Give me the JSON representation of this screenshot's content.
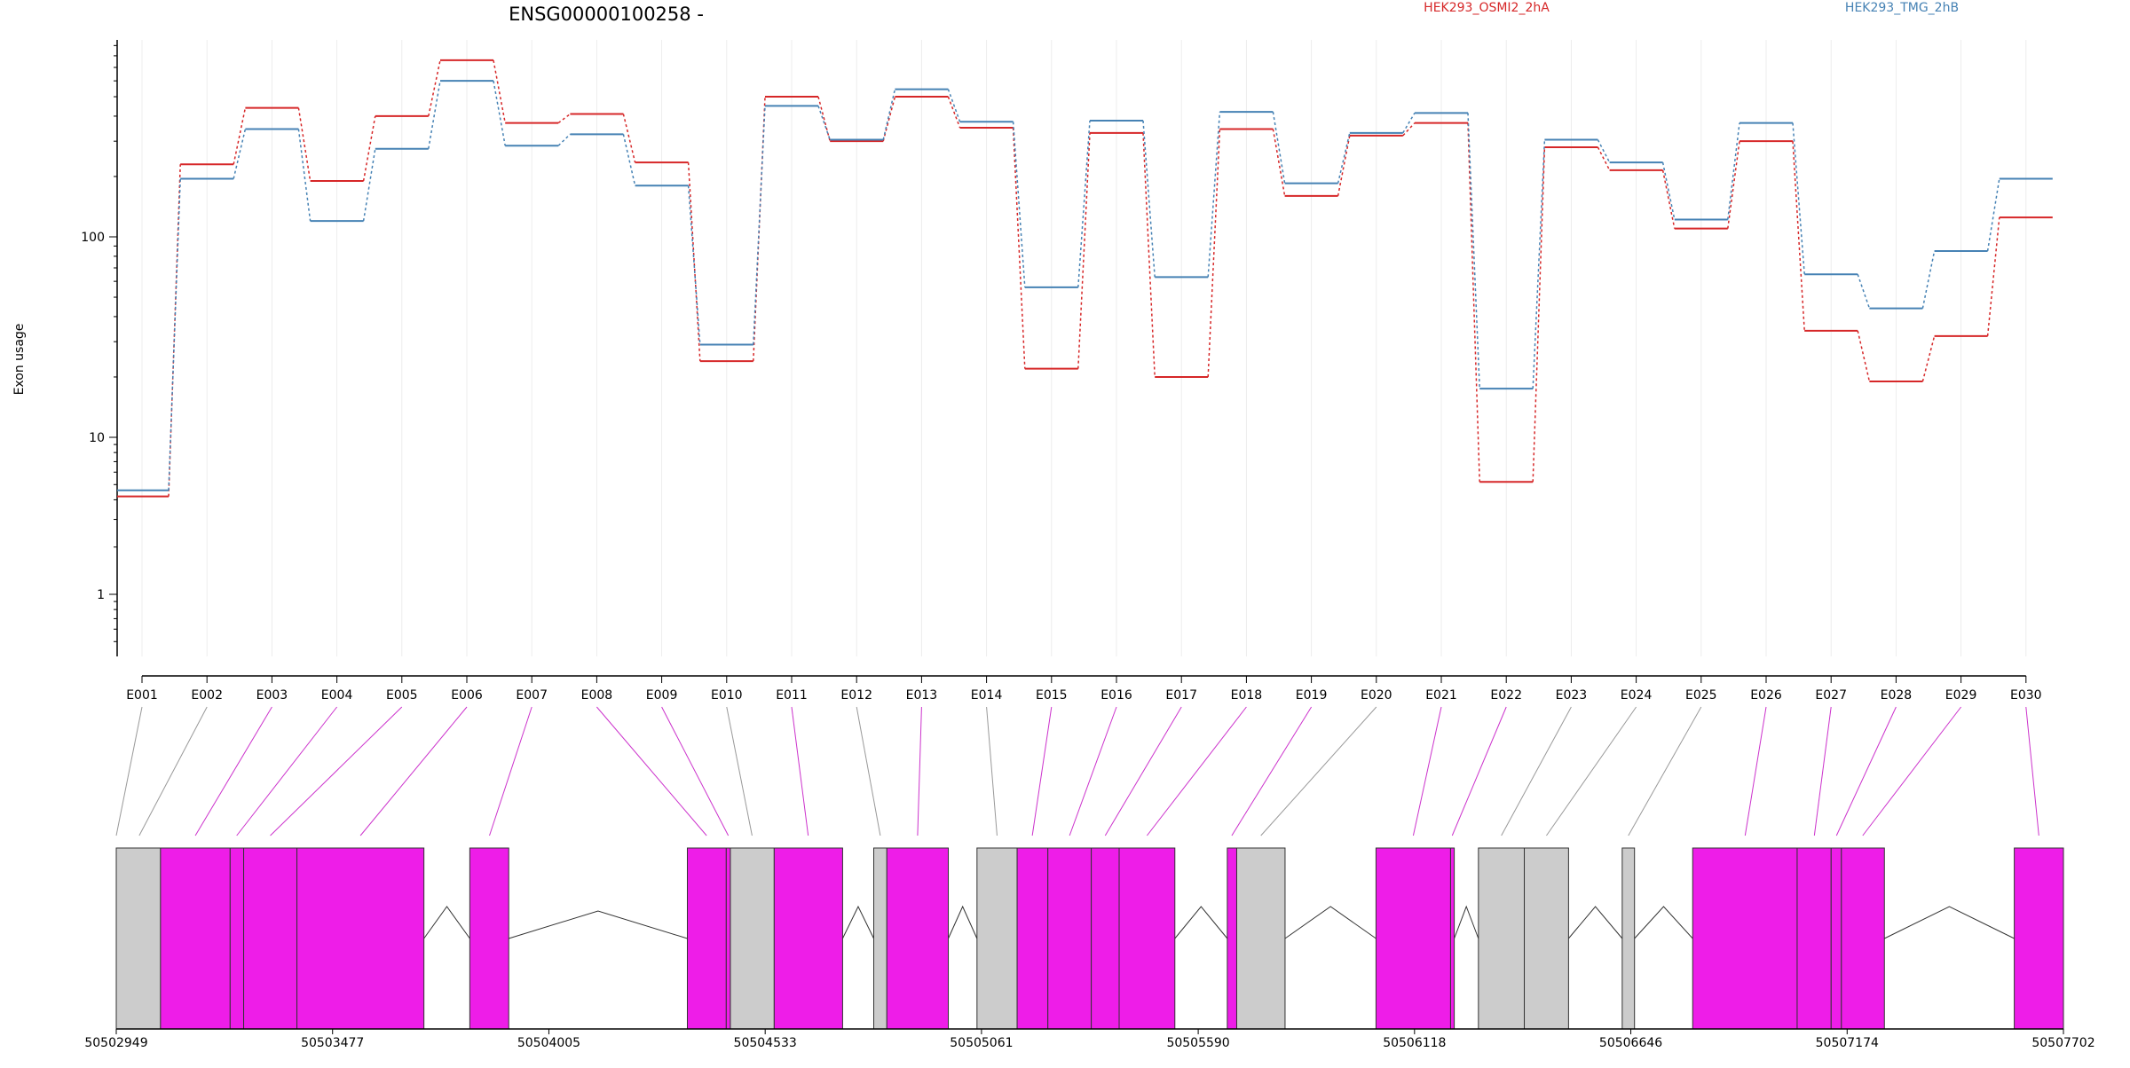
{
  "chart_data": {
    "type": "line",
    "title": "ENSG00000100258 -",
    "ylabel": "Exon usage",
    "xlabel": "",
    "y_scale": "log",
    "ylim": [
      0.4,
      1000
    ],
    "y_ticks": [
      1,
      10,
      100
    ],
    "y_tick_labels": [
      "1",
      "10",
      "100"
    ],
    "grid": "vertical",
    "legend": "top",
    "categories": [
      "E001",
      "E002",
      "E003",
      "E004",
      "E005",
      "E006",
      "E007",
      "E008",
      "E009",
      "E010",
      "E011",
      "E012",
      "E013",
      "E014",
      "E015",
      "E016",
      "E017",
      "E018",
      "E019",
      "E020",
      "E021",
      "E022",
      "E023",
      "E024",
      "E025",
      "E026",
      "E027",
      "E028",
      "E029",
      "E030"
    ],
    "series": [
      {
        "name": "HEK293_OSMI2_2hA",
        "color": "#d62728",
        "values": [
          4.2,
          230,
          440,
          190,
          400,
          760,
          370,
          410,
          235,
          24,
          500,
          300,
          500,
          350,
          22,
          330,
          20,
          345,
          160,
          320,
          370,
          5.2,
          280,
          215,
          110,
          300,
          34,
          19,
          32,
          125
        ]
      },
      {
        "name": "HEK293_TMG_2hB",
        "color": "#4682b4",
        "values": [
          4.6,
          195,
          345,
          120,
          275,
          600,
          285,
          325,
          180,
          29,
          450,
          305,
          545,
          375,
          56,
          380,
          63,
          420,
          185,
          330,
          415,
          17.5,
          305,
          235,
          122,
          370,
          65,
          44,
          85,
          195
        ]
      }
    ],
    "genomic_axis": {
      "range": [
        50502949,
        50507702
      ],
      "tick_values": [
        50502949,
        50503477,
        50504005,
        50504533,
        50505061,
        50505590,
        50506118,
        50506646,
        50507174,
        50507702
      ],
      "tick_labels": [
        "50502949",
        "50503477",
        "50504005",
        "50504533",
        "50505061",
        "50505590",
        "50506118",
        "50506646",
        "50507174",
        "50507702"
      ]
    },
    "exon_segments": [
      {
        "start": 50502949,
        "end": 50503057,
        "color": "#cccccc"
      },
      {
        "start": 50503057,
        "end": 50503227,
        "color": "#ee1de8"
      },
      {
        "start": 50503227,
        "end": 50503260,
        "color": "#ee1de8"
      },
      {
        "start": 50503260,
        "end": 50503390,
        "color": "#ee1de8"
      },
      {
        "start": 50503390,
        "end": 50503700,
        "color": "#ee1de8"
      },
      {
        "start": 50503812,
        "end": 50503907,
        "color": "#ee1de8"
      },
      {
        "start": 50504343,
        "end": 50504438,
        "color": "#ee1de8"
      },
      {
        "start": 50504438,
        "end": 50504448,
        "color": "#ee1de8"
      },
      {
        "start": 50504448,
        "end": 50504555,
        "color": "#cccccc"
      },
      {
        "start": 50504555,
        "end": 50504722,
        "color": "#ee1de8"
      },
      {
        "start": 50504798,
        "end": 50504830,
        "color": "#cccccc"
      },
      {
        "start": 50504830,
        "end": 50504980,
        "color": "#ee1de8"
      },
      {
        "start": 50505050,
        "end": 50505148,
        "color": "#cccccc"
      },
      {
        "start": 50505148,
        "end": 50505223,
        "color": "#ee1de8"
      },
      {
        "start": 50505223,
        "end": 50505329,
        "color": "#ee1de8"
      },
      {
        "start": 50505329,
        "end": 50505397,
        "color": "#ee1de8"
      },
      {
        "start": 50505397,
        "end": 50505533,
        "color": "#ee1de8"
      },
      {
        "start": 50505661,
        "end": 50505684,
        "color": "#ee1de8"
      },
      {
        "start": 50505684,
        "end": 50505802,
        "color": "#cccccc"
      },
      {
        "start": 50506024,
        "end": 50506206,
        "color": "#ee1de8"
      },
      {
        "start": 50506206,
        "end": 50506215,
        "color": "#ee1de8"
      },
      {
        "start": 50506274,
        "end": 50506386,
        "color": "#cccccc"
      },
      {
        "start": 50506386,
        "end": 50506494,
        "color": "#cccccc"
      },
      {
        "start": 50506625,
        "end": 50506655,
        "color": "#cccccc"
      },
      {
        "start": 50506797,
        "end": 50507052,
        "color": "#ee1de8"
      },
      {
        "start": 50507052,
        "end": 50507135,
        "color": "#ee1de8"
      },
      {
        "start": 50507135,
        "end": 50507160,
        "color": "#ee1de8"
      },
      {
        "start": 50507160,
        "end": 50507265,
        "color": "#ee1de8"
      },
      {
        "start": 50507582,
        "end": 50507702,
        "color": "#ee1de8"
      }
    ],
    "exon_links": [
      {
        "exon": "E001",
        "pos": 50502949,
        "color": "#999999"
      },
      {
        "exon": "E002",
        "pos": 50503005,
        "color": "#999999"
      },
      {
        "exon": "E003",
        "pos": 50503142,
        "color": "#cc33cc"
      },
      {
        "exon": "E004",
        "pos": 50503243,
        "color": "#cc33cc"
      },
      {
        "exon": "E005",
        "pos": 50503325,
        "color": "#cc33cc"
      },
      {
        "exon": "E006",
        "pos": 50503545,
        "color": "#cc33cc"
      },
      {
        "exon": "E007",
        "pos": 50503860,
        "color": "#cc33cc"
      },
      {
        "exon": "E008",
        "pos": 50504390,
        "color": "#cc33cc"
      },
      {
        "exon": "E009",
        "pos": 50504443,
        "color": "#cc33cc"
      },
      {
        "exon": "E010",
        "pos": 50504501,
        "color": "#999999"
      },
      {
        "exon": "E011",
        "pos": 50504638,
        "color": "#cc33cc"
      },
      {
        "exon": "E012",
        "pos": 50504814,
        "color": "#999999"
      },
      {
        "exon": "E013",
        "pos": 50504905,
        "color": "#cc33cc"
      },
      {
        "exon": "E014",
        "pos": 50505099,
        "color": "#999999"
      },
      {
        "exon": "E015",
        "pos": 50505185,
        "color": "#cc33cc"
      },
      {
        "exon": "E016",
        "pos": 50505276,
        "color": "#cc33cc"
      },
      {
        "exon": "E017",
        "pos": 50505363,
        "color": "#cc33cc"
      },
      {
        "exon": "E018",
        "pos": 50505465,
        "color": "#cc33cc"
      },
      {
        "exon": "E019",
        "pos": 50505672,
        "color": "#cc33cc"
      },
      {
        "exon": "E020",
        "pos": 50505743,
        "color": "#999999"
      },
      {
        "exon": "E021",
        "pos": 50506115,
        "color": "#cc33cc"
      },
      {
        "exon": "E022",
        "pos": 50506210,
        "color": "#cc33cc"
      },
      {
        "exon": "E023",
        "pos": 50506330,
        "color": "#999999"
      },
      {
        "exon": "E024",
        "pos": 50506440,
        "color": "#999999"
      },
      {
        "exon": "E025",
        "pos": 50506640,
        "color": "#999999"
      },
      {
        "exon": "E026",
        "pos": 50506925,
        "color": "#cc33cc"
      },
      {
        "exon": "E027",
        "pos": 50507094,
        "color": "#cc33cc"
      },
      {
        "exon": "E028",
        "pos": 50507148,
        "color": "#cc33cc"
      },
      {
        "exon": "E029",
        "pos": 50507212,
        "color": "#cc33cc"
      },
      {
        "exon": "E030",
        "pos": 50507642,
        "color": "#cc33cc"
      }
    ],
    "introns": [
      [
        50503700,
        50503812
      ],
      [
        50503907,
        50504343
      ],
      [
        50504722,
        50504798
      ],
      [
        50504980,
        50505050
      ],
      [
        50505533,
        50505661
      ],
      [
        50505802,
        50506024
      ],
      [
        50506215,
        50506274
      ],
      [
        50506494,
        50506625
      ],
      [
        50506655,
        50506797
      ],
      [
        50507265,
        50507582
      ]
    ]
  }
}
